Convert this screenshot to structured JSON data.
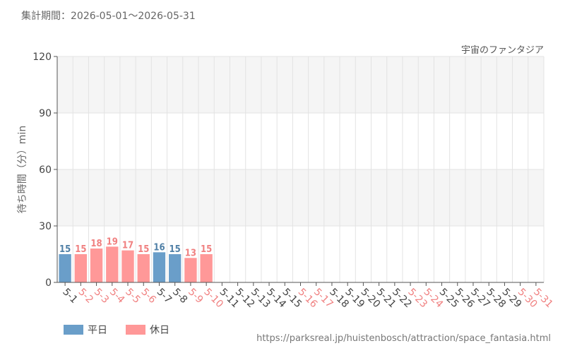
{
  "header": {
    "period_label": "集計期間：2026-05-01～2026-05-31",
    "attraction": "宇宙のファンタジア"
  },
  "legend": {
    "weekday_label": "平日",
    "holiday_label": "休日"
  },
  "footer": {
    "source_url": "https://parksreal.jp/huistenbosch/attraction/space_fantasia.html"
  },
  "colors": {
    "weekday": "#6a9ec9",
    "holiday": "#ff9898",
    "weekday_label": "#4f7fa6",
    "holiday_label": "#f08080",
    "axis_text": "#444444",
    "grid": "#e3e3e3",
    "band": "#f5f5f5"
  },
  "chart_data": {
    "type": "bar",
    "ylabel": "待ち時間（分）min",
    "ylim": [
      0,
      120
    ],
    "yticks": [
      0,
      30,
      60,
      90,
      120
    ],
    "grid": true,
    "legend_position": "bottom-left",
    "categories": [
      "5-1",
      "5-2",
      "5-3",
      "5-4",
      "5-5",
      "5-6",
      "5-7",
      "5-8",
      "5-9",
      "5-10",
      "5-11",
      "5-12",
      "5-13",
      "5-14",
      "5-15",
      "5-16",
      "5-17",
      "5-18",
      "5-19",
      "5-20",
      "5-21",
      "5-22",
      "5-23",
      "5-24",
      "5-25",
      "5-26",
      "5-27",
      "5-28",
      "5-29",
      "5-30",
      "5-31"
    ],
    "day_type": [
      "weekday",
      "holiday",
      "holiday",
      "holiday",
      "holiday",
      "holiday",
      "weekday",
      "weekday",
      "holiday",
      "holiday",
      "weekday",
      "weekday",
      "weekday",
      "weekday",
      "weekday",
      "holiday",
      "holiday",
      "weekday",
      "weekday",
      "weekday",
      "weekday",
      "weekday",
      "holiday",
      "holiday",
      "weekday",
      "weekday",
      "weekday",
      "weekday",
      "weekday",
      "holiday",
      "holiday"
    ],
    "values": [
      15,
      15,
      18,
      19,
      17,
      15,
      16,
      15,
      13,
      15,
      null,
      null,
      null,
      null,
      null,
      null,
      null,
      null,
      null,
      null,
      null,
      null,
      null,
      null,
      null,
      null,
      null,
      null,
      null,
      null,
      null
    ]
  }
}
